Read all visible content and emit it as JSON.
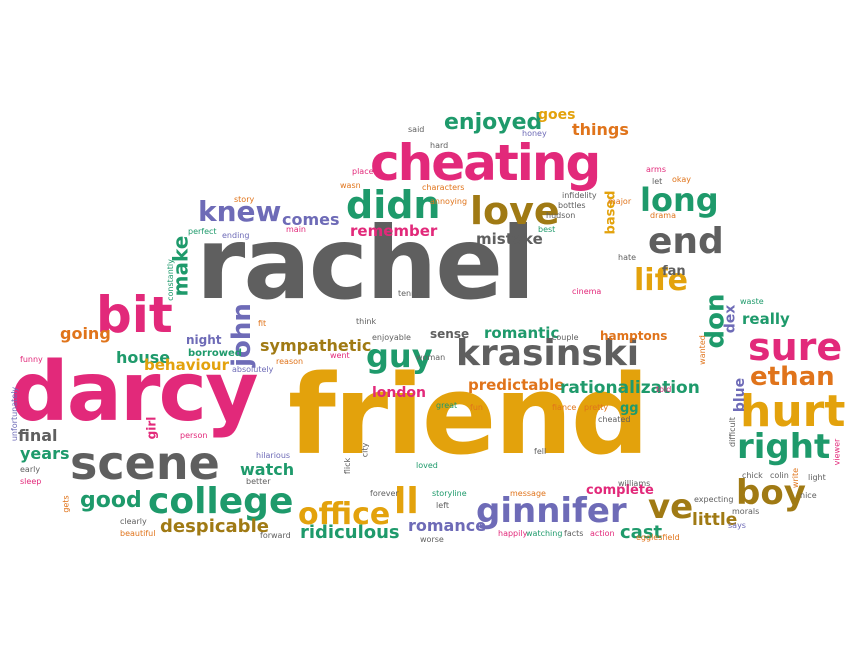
{
  "colors": {
    "pink": "#e2297a",
    "gold": "#e3a20c",
    "gray": "#5f5f5f",
    "green": "#1e9a6b",
    "purple": "#6e6bb7",
    "orange": "#e0741b",
    "olive": "#a07a14",
    "teal": "#2e8c8c"
  },
  "words": {
    "rachel": "rachel",
    "friend": "friend",
    "darcy": "darcy",
    "cheating": "cheating",
    "krasinski": "krasinski",
    "scene": "scene",
    "bit": "bit",
    "college": "college",
    "ginnifer": "ginnifer",
    "hurt": "hurt",
    "right": "right",
    "love": "love",
    "end": "end",
    "didn": "didn",
    "knew": "knew",
    "guy": "guy",
    "sure": "sure",
    "office": "office",
    "boy": "boy",
    "ve": "ve",
    "ll": "ll",
    "long": "long",
    "life": "life",
    "ethan": "ethan",
    "enjoyed": "enjoyed",
    "john": "john",
    "make": "make",
    "good": "good",
    "despicable": "despicable",
    "ridiculous": "ridiculous",
    "romance": "romance",
    "cast": "cast",
    "little": "little",
    "watch": "watch",
    "final": "final",
    "years": "years",
    "going": "going",
    "house": "house",
    "behaviour": "behaviour",
    "sympathetic": "sympathetic",
    "london": "london",
    "predictable": "predictable",
    "rationalization": "rationalization",
    "romantic": "romantic",
    "mistake": "mistake",
    "remember": "remember",
    "comes": "comes",
    "things": "things",
    "goes": "goes",
    "really": "really",
    "don": "don",
    "dex": "dex",
    "blue": "blue",
    "fan": "fan",
    "complete": "complete",
    "hamptons": "hamptons",
    "night": "night",
    "borrowed": "borrowed",
    "based": "based",
    "sense": "sense",
    "girl": "girl",
    "gg": "gg",
    "said": "said",
    "hard": "hard",
    "honey": "honey",
    "place": "place",
    "wasn": "wasn",
    "characters": "characters",
    "infidelity": "infidelity",
    "bottles": "bottles",
    "hudson": "hudson",
    "major": "major",
    "best": "best",
    "annoying": "annoying",
    "story": "story",
    "perfect": "perfect",
    "ending": "ending",
    "main": "main",
    "constantly": "constantly",
    "arms": "arms",
    "okay": "okay",
    "let": "let",
    "drama": "drama",
    "hate": "hate",
    "cinema": "cinema",
    "waste": "waste",
    "wanted": "wanted",
    "tennis": "tennis",
    "think": "think",
    "enjoyable": "enjoyable",
    "couple": "couple",
    "fit": "fit",
    "reason": "reason",
    "went": "went",
    "woman": "woman",
    "absolutely": "absolutely",
    "funny": "funny",
    "unfortunately": "unfortunately",
    "early": "early",
    "sleep": "sleep",
    "gets": "gets",
    "person": "person",
    "hilarious": "hilarious",
    "better": "better",
    "flick": "flick",
    "city": "city",
    "great": "great",
    "fun": "fun",
    "fiance": "fiance",
    "pretty": "pretty",
    "told": "told",
    "cheated": "cheated",
    "difficult": "difficult",
    "chick": "chick",
    "colin": "colin",
    "light": "light",
    "viewer": "viewer",
    "write": "write",
    "nice": "nice",
    "morals": "morals",
    "says": "says",
    "egglesfield": "egglesfield",
    "expecting": "expecting",
    "williams": "williams",
    "fell": "fell",
    "loved": "loved",
    "forever": "forever",
    "storyline": "storyline",
    "message": "message",
    "left": "left",
    "worse": "worse",
    "happily": "happily",
    "watching": "watching",
    "facts": "facts",
    "action": "action",
    "clearly": "clearly",
    "beautiful": "beautiful",
    "forward": "forward"
  }
}
